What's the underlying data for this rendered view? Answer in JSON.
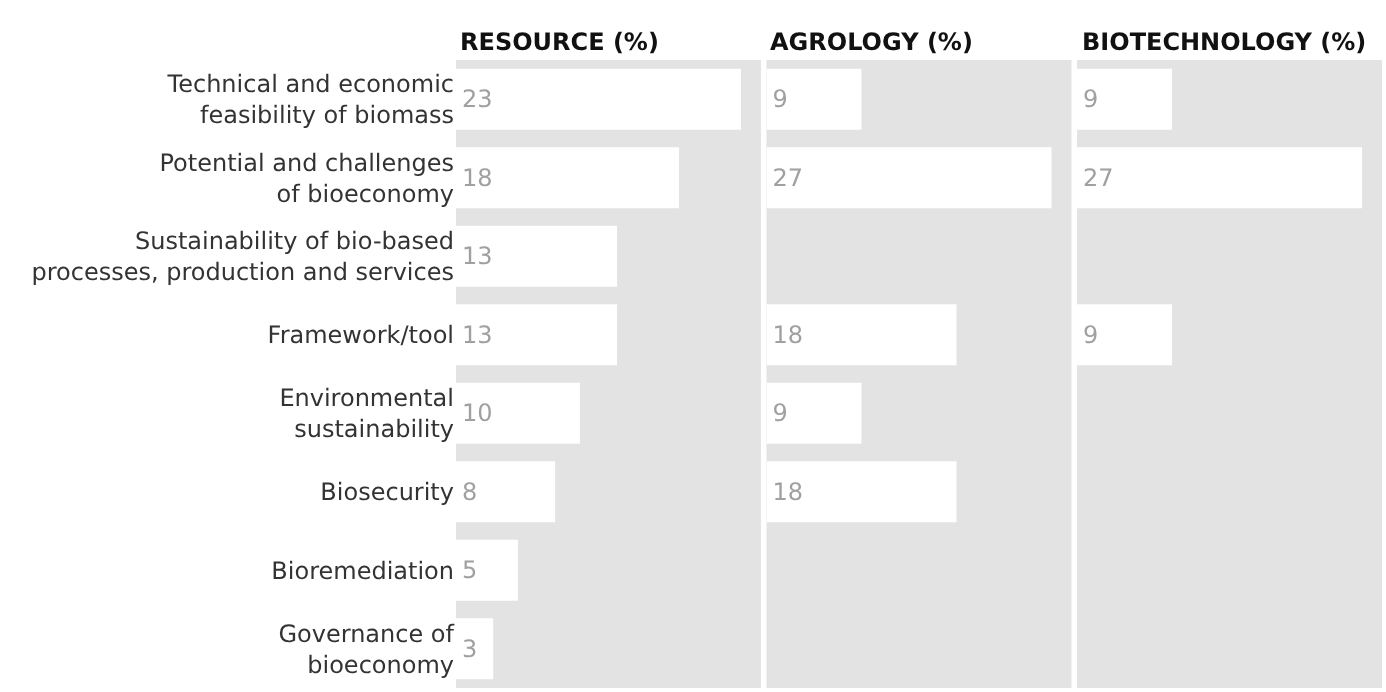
{
  "chart_data": [
    {
      "type": "bar",
      "orientation": "horizontal",
      "title": "RESOURCE (%)",
      "categories": [
        "Technical and economic\nfeasibility of biomass",
        "Potential and challenges\nof bioeconomy",
        "Sustainability of bio-based\nprocesses, production and services",
        "Framework/tool",
        "Environmental\nsustainability",
        "Biosecurity",
        "Bioremediation",
        "Governance of\nbioeconomy"
      ],
      "values": [
        23,
        18,
        13,
        13,
        10,
        8,
        5,
        3
      ],
      "color": "#ffffff",
      "data_labels": true,
      "tick_labels": "y"
    },
    {
      "type": "bar",
      "orientation": "horizontal",
      "title": "AGROLOGY (%)",
      "categories": [
        "Technical and economic\nfeasibility of biomass",
        "Potential and challenges\nof bioeconomy",
        "Sustainability of bio-based\nprocesses, production and services",
        "Framework/tool",
        "Environmental\nsustainability",
        "Biosecurity",
        "Bioremediation",
        "Governance of\nbioeconomy"
      ],
      "values": [
        9,
        27,
        null,
        18,
        9,
        18,
        null,
        null
      ],
      "color": "#ffffff",
      "data_labels": true,
      "tick_labels": false
    },
    {
      "type": "bar",
      "orientation": "horizontal",
      "title": "BIOTECHNOLOGY (%)",
      "categories": [
        "Technical and economic\nfeasibility of biomass",
        "Potential and challenges\nof bioeconomy",
        "Sustainability of bio-based\nprocesses, production and services",
        "Framework/tool",
        "Environmental\nsustainability",
        "Biosecurity",
        "Bioremediation",
        "Governance of\nbioeconomy"
      ],
      "values": [
        9,
        27,
        null,
        9,
        null,
        null,
        null,
        null
      ],
      "color": "#ffffff",
      "data_labels": true,
      "tick_labels": false
    }
  ]
}
